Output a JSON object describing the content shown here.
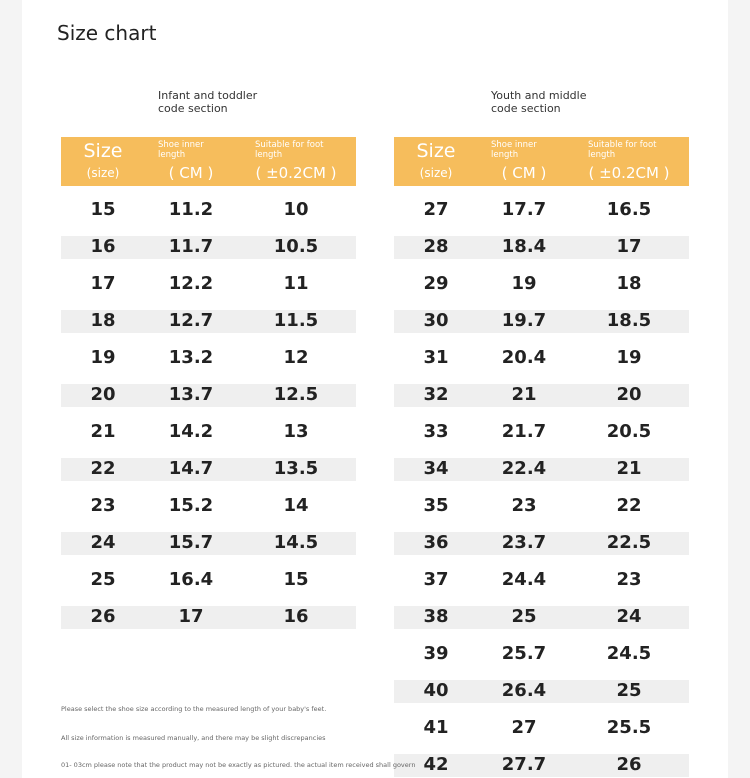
{
  "title": "Size chart",
  "sections": [
    {
      "label": "Infant and toddler code section",
      "header": {
        "size": "Size",
        "size_sub": "(size)",
        "inner": "Shoe inner length",
        "inner_unit": "( CM )",
        "foot": "Suitable for foot length",
        "foot_unit": "( ±0.2CM )"
      },
      "rows": [
        [
          15,
          11.2,
          10
        ],
        [
          16,
          11.7,
          10.5
        ],
        [
          17,
          12.2,
          11
        ],
        [
          18,
          12.7,
          11.5
        ],
        [
          19,
          13.2,
          12
        ],
        [
          20,
          13.7,
          12.5
        ],
        [
          21,
          14.2,
          13
        ],
        [
          22,
          14.7,
          13.5
        ],
        [
          23,
          15.2,
          14
        ],
        [
          24,
          15.7,
          14.5
        ],
        [
          25,
          16.4,
          15
        ],
        [
          26,
          17,
          16
        ]
      ]
    },
    {
      "label": "Youth and middle code section",
      "header": {
        "size": "Size",
        "size_sub": "(size)",
        "inner": "Shoe inner length",
        "inner_unit": "( CM )",
        "foot": "Suitable for foot length",
        "foot_unit": "( ±0.2CM )"
      },
      "rows": [
        [
          27,
          17.7,
          16.5
        ],
        [
          28,
          18.4,
          17
        ],
        [
          29,
          19,
          18
        ],
        [
          30,
          19.7,
          18.5
        ],
        [
          31,
          20.4,
          19
        ],
        [
          32,
          21,
          20
        ],
        [
          33,
          21.7,
          20.5
        ],
        [
          34,
          22.4,
          21
        ],
        [
          35,
          23,
          22
        ],
        [
          36,
          23.7,
          22.5
        ],
        [
          37,
          24.4,
          23
        ],
        [
          38,
          25,
          24
        ],
        [
          39,
          25.7,
          24.5
        ],
        [
          40,
          26.4,
          25
        ],
        [
          41,
          27,
          25.5
        ],
        [
          42,
          27.7,
          26
        ]
      ]
    }
  ],
  "notes": [
    "Please select the shoe size according to the measured length of your baby's feet.",
    "All size information is measured manually, and there may be slight discrepancies",
    "01- 03cm please note that the product may not be exactly as pictured. the actual item received shall govern"
  ]
}
